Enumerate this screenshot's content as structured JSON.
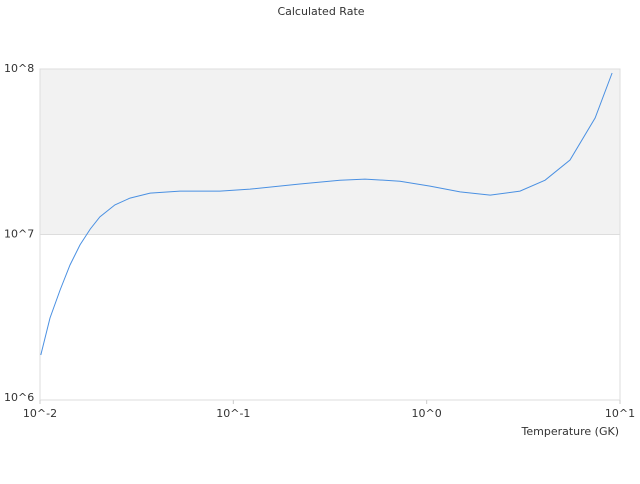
{
  "chart_data": {
    "type": "line",
    "title": "Calculated Rate",
    "x_label": "Temperature (GK)",
    "x": [
      0.0101,
      0.01127,
      0.0127,
      0.0143,
      0.0161,
      0.0182,
      0.0204,
      0.0244,
      0.0292,
      0.0371,
      0.053,
      0.0853,
      0.122,
      0.221,
      0.356,
      0.48,
      0.728,
      1.04,
      1.49,
      2.13,
      3.04,
      4.1,
      5.51,
      7.43,
      9.1
    ],
    "series": [
      {
        "color": "#4a90e2",
        "values": [
          1870000,
          3130000,
          4620000,
          6540000,
          8650000,
          10800000,
          12800000,
          15100000,
          16600000,
          17800000,
          18300000,
          18300000,
          18800000,
          20200000,
          21300000,
          21600000,
          21000000,
          19600000,
          18100000,
          17300000,
          18300000,
          21300000,
          28200000,
          50600000,
          94600000
        ]
      }
    ],
    "xlim": [
      0.01,
      10
    ],
    "ylim": [
      1000000,
      100000000
    ],
    "xticks": [
      {
        "value": 0.01,
        "label": "10^-2"
      },
      {
        "value": 0.1,
        "label": "10^-1"
      },
      {
        "value": 1,
        "label": "10^0"
      },
      {
        "value": 10,
        "label": "10^1"
      }
    ],
    "yticks": [
      {
        "value": 1000000,
        "label": "10^6"
      },
      {
        "value": 10000000,
        "label": "10^7"
      },
      {
        "value": 100000000,
        "label": "10^8"
      }
    ],
    "xscale": "log",
    "yscale": "log",
    "grid": true
  }
}
